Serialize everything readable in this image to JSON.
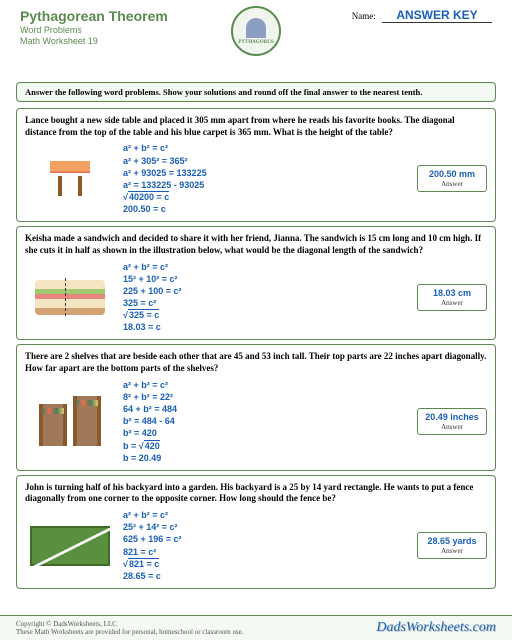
{
  "header": {
    "title": "Pythagorean Theorem",
    "subtitle1": "Word Problems",
    "subtitle2": "Math Worksheet 19",
    "logo_name": "PYTHAGORUS",
    "name_label": "Name:",
    "answer_key": "ANSWER KEY"
  },
  "instructions": "Answer the following word problems.  Show your solutions and round off the final answer to the nearest tenth.",
  "problems": [
    {
      "text": "Lance bought a new side table and placed it 305 mm apart from where he reads his favorite books.  The diagonal distance from the top of the table and his blue carpet is 365 mm. What is the height of the table?",
      "work": [
        "a² + b² = c²",
        "a² + 305² = 365²",
        "a² + 93025 = 133225",
        "a² = 133225 - 93025",
        "√40200 = c",
        "200.50 = c"
      ],
      "answer": "200.50 mm",
      "illus_type": "table"
    },
    {
      "text": "Keisha made a sandwich and decided to share it with her friend, Jianna.  The sandwich is 15 cm long and 10 cm high.  If she cuts it in half as shown in the illustration below, what would be the diagonal length of the sandwich?",
      "work": [
        "a² + b² = c²",
        "15² + 10² = c²",
        "225 + 100 = c²",
        "325 = c²",
        "√325 = c",
        "18.03 = c"
      ],
      "answer": "18.03 cm",
      "illus_type": "sandwich"
    },
    {
      "text": "There are 2 shelves that are beside each other that are 45 and 53 inch tall.  Their top parts are 22 inches apart diagonally.  How far apart are the bottom parts of the shelves?",
      "work": [
        "a² + b² = c²",
        "8² + b² = 22²",
        "64 + b² = 484",
        "b² = 484 - 64",
        "b² = 420",
        "b = √420",
        "b = 20.49"
      ],
      "answer": "20.49 inches",
      "illus_type": "shelves"
    },
    {
      "text": "John is turning half of his backyard into a garden. His backyard is a 25 by 14 yard rectangle. He wants to put a fence diagonally from one corner to the opposite corner.  How long should the fence be?",
      "work": [
        "a² + b² = c²",
        "25² + 14² = c²",
        "625 + 196 = c²",
        "821 = c²",
        "√821 = c",
        "28.65 = c"
      ],
      "answer": "28.65 yards",
      "illus_type": "yard"
    }
  ],
  "footer": {
    "copyright1": "Copyright © DadsWorksheets, LLC",
    "copyright2": "These Math Worksheets are provided for personal, homeschool or classroom use.",
    "site": "DadsWorksheets.com"
  },
  "answer_label": "Answer",
  "colors": {
    "accent": "#5b8a51",
    "blue": "#1a5fb4"
  }
}
